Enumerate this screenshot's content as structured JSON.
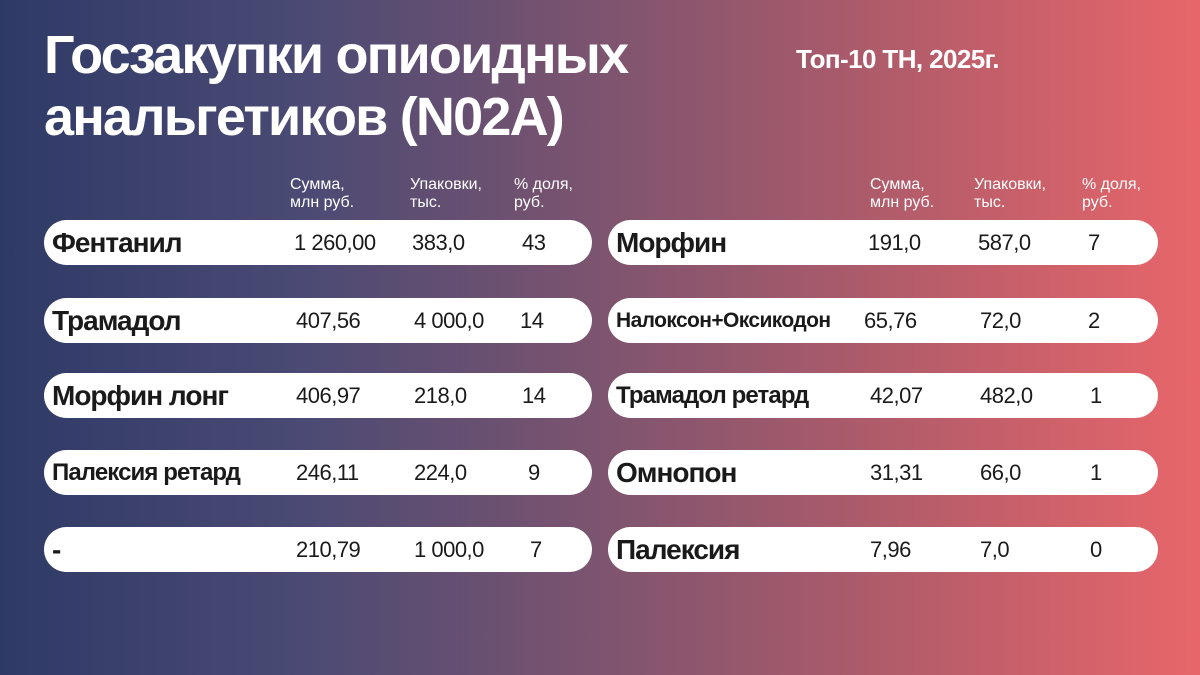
{
  "title_line1": "Госзакупки опиоидных",
  "title_line2": "анальгетиков (N02A)",
  "subtitle": "Топ-10 ТН, 2025г.",
  "headers": {
    "sum": "Сумма,\nмлн руб.",
    "packs": "Упаковки,\nтыс.",
    "share": "% доля,\nруб."
  },
  "left": [
    {
      "name": "Фентанил",
      "sum": "1 260,00",
      "packs": "383,0",
      "share": "43"
    },
    {
      "name": "Трамадол",
      "sum": "407,56",
      "packs": "4 000,0",
      "share": "14"
    },
    {
      "name": "Морфин лонг",
      "sum": "406,97",
      "packs": "218,0",
      "share": "14"
    },
    {
      "name": "Палексия ретард",
      "sum": "246,11",
      "packs": "224,0",
      "share": "9"
    },
    {
      "name": "-",
      "sum": "210,79",
      "packs": "1 000,0",
      "share": "7"
    }
  ],
  "right": [
    {
      "name": "Морфин",
      "sum": "191,0",
      "packs": "587,0",
      "share": "7"
    },
    {
      "name": "Налоксон+Оксикодон",
      "sum": "65,76",
      "packs": "72,0",
      "share": "2"
    },
    {
      "name": "Трамадол ретард",
      "sum": "42,07",
      "packs": "482,0",
      "share": "1"
    },
    {
      "name": "Омнопон",
      "sum": "31,31",
      "packs": "66,0",
      "share": "1"
    },
    {
      "name": "Палексия",
      "sum": "7,96",
      "packs": "7,0",
      "share": "0"
    }
  ]
}
